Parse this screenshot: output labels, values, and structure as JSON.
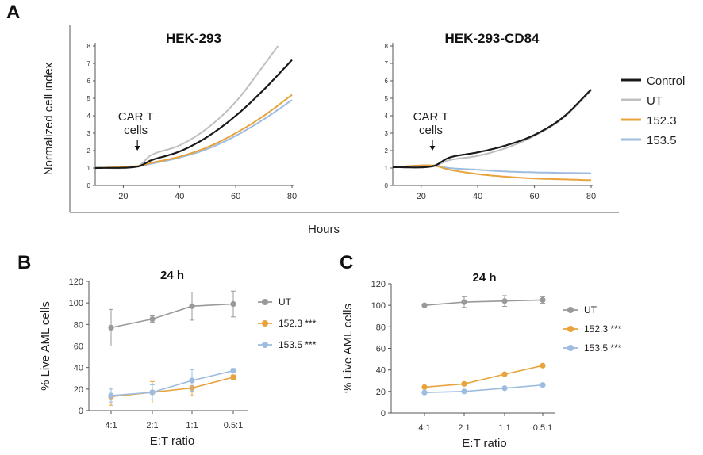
{
  "panels": {
    "a": "A",
    "b": "B",
    "c": "C"
  },
  "colors": {
    "control": "#1a1a1a",
    "ut": "#bfbfbf",
    "s1523": "#e8a33d",
    "s1535": "#9dbcdf",
    "ut_dot": "#999999",
    "axis": "#555555"
  },
  "panel_a": {
    "ylabel": "Normalized cell index",
    "xlabel": "Hours",
    "annotation": [
      "CAR T",
      "cells"
    ],
    "legend": [
      "Control",
      "UT",
      "152.3",
      "153.5"
    ]
  },
  "chart_data": [
    {
      "type": "line",
      "title": "HEK-293",
      "xlabel": "Hours",
      "ylabel": "Normalized cell index",
      "xlim": [
        10,
        80
      ],
      "ylim": [
        0,
        8
      ],
      "xticks": [
        20,
        40,
        60,
        80
      ],
      "yticks": [
        0,
        1,
        2,
        3,
        4,
        5,
        6,
        7,
        8
      ],
      "annotation_x": 25,
      "series": [
        {
          "name": "Control",
          "x": [
            10,
            25,
            30,
            40,
            50,
            60,
            70,
            80
          ],
          "y": [
            1.0,
            1.08,
            1.45,
            1.95,
            2.8,
            4.0,
            5.5,
            7.2
          ]
        },
        {
          "name": "UT",
          "x": [
            10,
            25,
            30,
            40,
            50,
            60,
            70,
            75
          ],
          "y": [
            1.0,
            1.1,
            1.75,
            2.3,
            3.3,
            4.8,
            6.9,
            8.0
          ]
        },
        {
          "name": "152.3",
          "x": [
            10,
            25,
            30,
            40,
            50,
            60,
            70,
            80
          ],
          "y": [
            1.0,
            1.12,
            1.3,
            1.65,
            2.2,
            3.0,
            4.0,
            5.2
          ]
        },
        {
          "name": "153.5",
          "x": [
            10,
            25,
            30,
            40,
            50,
            60,
            70,
            80
          ],
          "y": [
            1.0,
            1.1,
            1.25,
            1.6,
            2.1,
            2.85,
            3.8,
            4.9
          ]
        }
      ]
    },
    {
      "type": "line",
      "title": "HEK-293-CD84",
      "xlabel": "Hours",
      "ylabel": "",
      "xlim": [
        10,
        80
      ],
      "ylim": [
        0,
        8
      ],
      "xticks": [
        20,
        40,
        60,
        80
      ],
      "yticks": [
        0,
        1,
        2,
        3,
        4,
        5,
        6,
        7,
        8
      ],
      "annotation_x": 24,
      "series": [
        {
          "name": "Control",
          "x": [
            10,
            24,
            30,
            40,
            50,
            60,
            70,
            80
          ],
          "y": [
            1.05,
            1.1,
            1.6,
            1.9,
            2.3,
            2.9,
            3.9,
            5.5
          ]
        },
        {
          "name": "UT",
          "x": [
            10,
            24,
            30,
            40,
            50,
            60,
            70,
            80
          ],
          "y": [
            1.05,
            1.1,
            1.45,
            1.7,
            2.15,
            2.85,
            3.85,
            5.45
          ]
        },
        {
          "name": "152.3",
          "x": [
            10,
            24,
            30,
            40,
            50,
            60,
            70,
            80
          ],
          "y": [
            1.05,
            1.15,
            0.9,
            0.65,
            0.5,
            0.4,
            0.35,
            0.3
          ]
        },
        {
          "name": "153.5",
          "x": [
            10,
            24,
            30,
            40,
            50,
            60,
            70,
            80
          ],
          "y": [
            1.05,
            1.15,
            1.0,
            0.9,
            0.8,
            0.75,
            0.72,
            0.7
          ]
        }
      ]
    },
    {
      "type": "line",
      "title": "24 h",
      "xlabel": "E:T ratio",
      "ylabel": "% Live AML cells",
      "categories": [
        "4:1",
        "2:1",
        "1:1",
        "0.5:1"
      ],
      "ylim": [
        0,
        120
      ],
      "yticks": [
        0,
        20,
        40,
        60,
        80,
        100,
        120
      ],
      "series": [
        {
          "name": "UT",
          "legend": "UT",
          "values": [
            77,
            85,
            97,
            99
          ],
          "errors": [
            17,
            3,
            13,
            12
          ]
        },
        {
          "name": "152.3",
          "legend": "152.3 ***",
          "values": [
            13,
            17,
            21,
            31
          ],
          "errors": [
            8,
            10,
            7,
            2
          ]
        },
        {
          "name": "153.5",
          "legend": "153.5 ***",
          "values": [
            14,
            17,
            28,
            37
          ],
          "errors": [
            6,
            7,
            10,
            2
          ]
        }
      ]
    },
    {
      "type": "line",
      "title": "24 h",
      "xlabel": "E:T ratio",
      "ylabel": "% Live AML cells",
      "categories": [
        "4:1",
        "2:1",
        "1:1",
        "0.5:1"
      ],
      "ylim": [
        0,
        120
      ],
      "yticks": [
        0,
        20,
        40,
        60,
        80,
        100,
        120
      ],
      "series": [
        {
          "name": "UT",
          "legend": "UT",
          "values": [
            100,
            103,
            104,
            105
          ],
          "errors": [
            1,
            5,
            5,
            3
          ]
        },
        {
          "name": "152.3",
          "legend": "152.3 ***",
          "values": [
            24,
            27,
            36,
            44
          ],
          "errors": [
            1,
            1,
            1,
            1
          ]
        },
        {
          "name": "153.5",
          "legend": "153.5 ***",
          "values": [
            19,
            20,
            23,
            26
          ],
          "errors": [
            1,
            1,
            1,
            1
          ]
        }
      ]
    }
  ]
}
